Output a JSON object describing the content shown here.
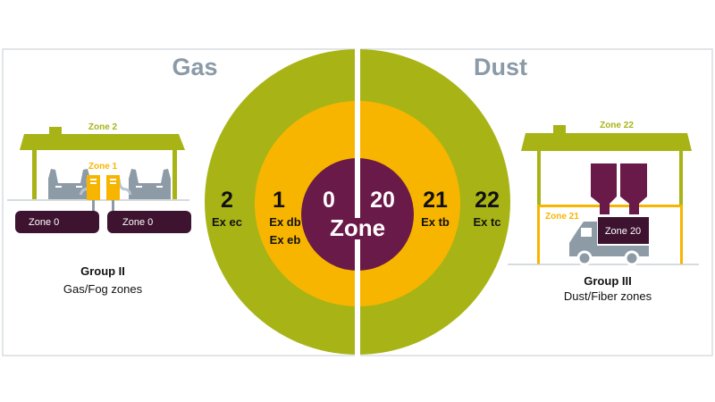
{
  "colors": {
    "zone_outer": "#a8b416",
    "zone_middle": "#f8b500",
    "zone_center": "#6a1a48",
    "zone_block": "#3d1330",
    "equipment_grey": "#8d9ba7"
  },
  "titles": {
    "gas": "Gas",
    "dust": "Dust"
  },
  "center_label": "Zone",
  "gas_zones": [
    {
      "number": "2",
      "protection": [
        "Ex ec"
      ]
    },
    {
      "number": "1",
      "protection": [
        "Ex db",
        "Ex eb"
      ]
    },
    {
      "number": "0",
      "protection": []
    }
  ],
  "dust_zones": [
    {
      "number": "20",
      "protection": []
    },
    {
      "number": "21",
      "protection": [
        "Ex tb"
      ]
    },
    {
      "number": "22",
      "protection": [
        "Ex tc"
      ]
    }
  ],
  "gas_illustration": {
    "zone_2": "Zone 2",
    "zone_1": "Zone 1",
    "zone_0_left": "Zone 0",
    "zone_0_right": "Zone 0",
    "group": "Group II",
    "description": "Gas/Fog zones"
  },
  "dust_illustration": {
    "zone_22": "Zone 22",
    "zone_21": "Zone 21",
    "zone_20": "Zone 20",
    "group": "Group III",
    "description": "Dust/Fiber zones"
  }
}
